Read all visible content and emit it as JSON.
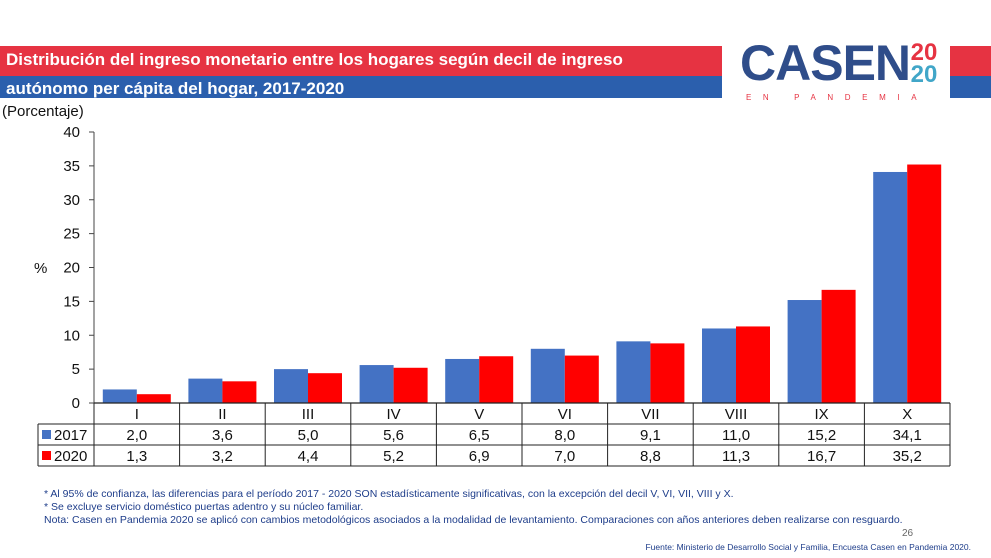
{
  "title": {
    "line1": "Distribución del ingreso monetario entre los hogares según decil de ingreso",
    "line2": "autónomo per cápita del hogar, 2017-2020"
  },
  "logo": {
    "text": "CASEN",
    "year_top": "20",
    "year_bottom": "20",
    "subtitle": "EN PANDEMIA"
  },
  "unit_label": "(Porcentaje)",
  "chart_data": {
    "type": "bar",
    "title": "Distribución del ingreso monetario entre los hogares según decil de ingreso autónomo per cápita del hogar, 2017-2020",
    "ylabel": "%",
    "xlabel": "",
    "ylim": [
      0,
      40
    ],
    "yticks": [
      0,
      5,
      10,
      15,
      20,
      25,
      30,
      35,
      40
    ],
    "categories": [
      "I",
      "II",
      "III",
      "IV",
      "V",
      "VI",
      "VII",
      "VIII",
      "IX",
      "X"
    ],
    "series": [
      {
        "name": "2017",
        "color": "#4472c4",
        "values": [
          2.0,
          3.6,
          5.0,
          5.6,
          6.5,
          8.0,
          9.1,
          11.0,
          15.2,
          34.1
        ],
        "labels": [
          "2,0",
          "3,6",
          "5,0",
          "5,6",
          "6,5",
          "8,0",
          "9,1",
          "11,0",
          "15,2",
          "34,1"
        ]
      },
      {
        "name": "2020",
        "color": "#ff0000",
        "values": [
          1.3,
          3.2,
          4.4,
          5.2,
          6.9,
          7.0,
          8.8,
          11.3,
          16.7,
          35.2
        ],
        "labels": [
          "1,3",
          "3,2",
          "4,4",
          "5,2",
          "6,9",
          "7,0",
          "8,8",
          "11,3",
          "16,7",
          "35,2"
        ]
      }
    ]
  },
  "notes": [
    "* Al 95% de confianza, las diferencias para el período 2017 - 2020 SON estadísticamente significativas, con la excepción del decil V, VI, VII, VIII y X.",
    "* Se excluye servicio doméstico puertas adentro y su núcleo familiar.",
    "Nota: Casen en Pandemia 2020 se aplicó con cambios metodológicos asociados a la modalidad de levantamiento. Comparaciones con años anteriores deben realizarse con resguardo."
  ],
  "page_number": "26",
  "source": "Fuente: Ministerio de Desarrollo Social y Familia, Encuesta Casen en Pandemia 2020."
}
